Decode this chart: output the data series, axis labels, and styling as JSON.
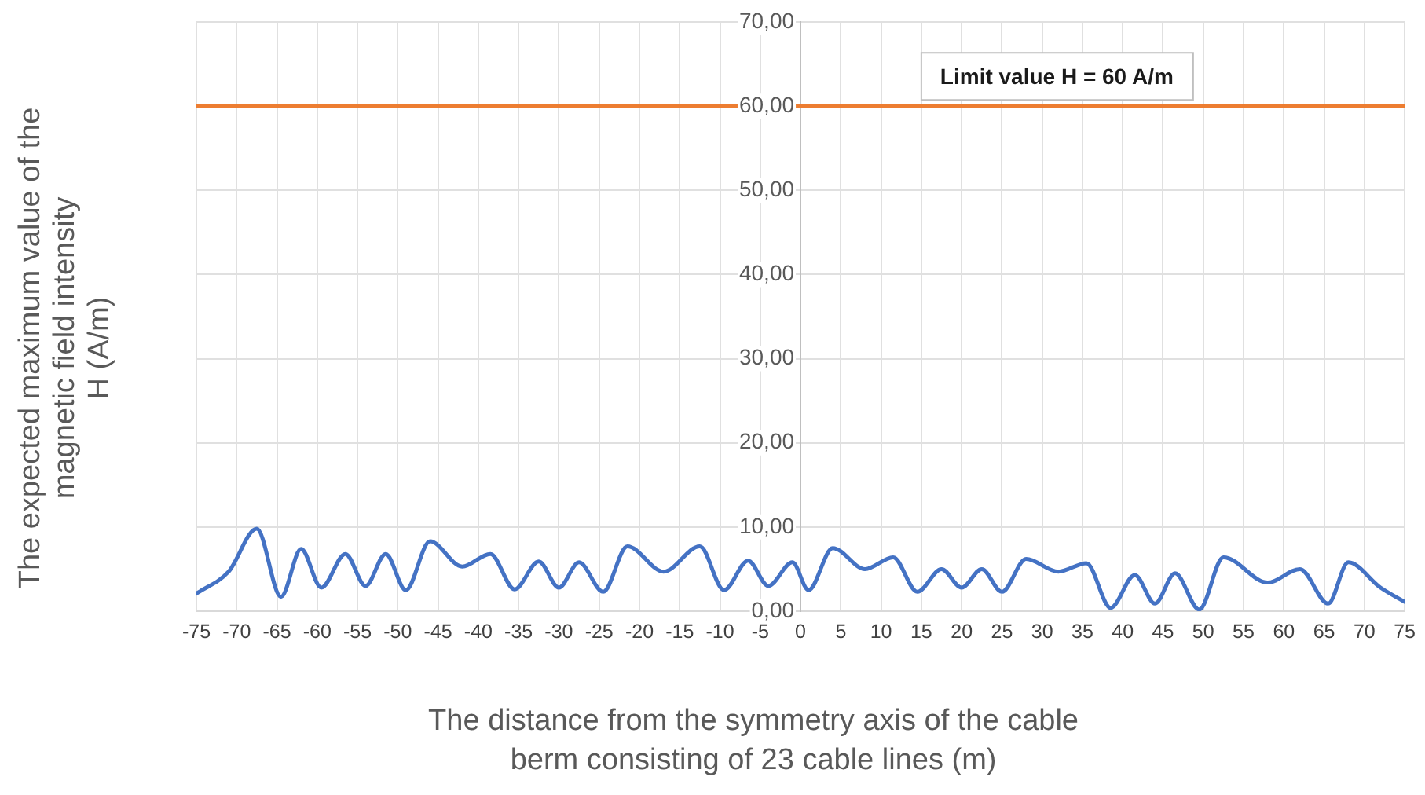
{
  "chart_data": {
    "type": "line",
    "xlabel": "The distance from the symmetry axis of the cable\nberm consisting of 23 cable lines (m)",
    "ylabel": "The expected maximum value of the\nmagnetic field intensity\nH (A/m)",
    "series": [
      {
        "color": "#4472c4",
        "x": [
          -75,
          -71,
          -67.5,
          -64.5,
          -62,
          -59.5,
          -56.5,
          -54,
          -51.5,
          -49,
          -46,
          -42,
          -38.5,
          -35.5,
          -32.5,
          -30,
          -27.5,
          -24.5,
          -21.5,
          -17,
          -12.5,
          -9.5,
          -6.5,
          -4,
          -1,
          1,
          4,
          8,
          11.5,
          14.5,
          17.5,
          20,
          22.5,
          25,
          28,
          32,
          35.5,
          38.5,
          41.5,
          44,
          46.5,
          49.5,
          52.5,
          58,
          62,
          65.5,
          68,
          72,
          75
        ],
        "values": [
          2.1,
          4.7,
          9.8,
          1.7,
          7.4,
          2.8,
          6.8,
          3.0,
          6.8,
          2.5,
          8.3,
          5.3,
          6.8,
          2.6,
          5.9,
          2.8,
          5.8,
          2.3,
          7.7,
          4.7,
          7.7,
          2.5,
          6.0,
          3.0,
          5.8,
          2.5,
          7.5,
          5.0,
          6.4,
          2.3,
          5.0,
          2.8,
          5.0,
          2.3,
          6.2,
          4.7,
          5.7,
          0.4,
          4.3,
          0.9,
          4.5,
          0.2,
          6.4,
          3.4,
          5.0,
          0.9,
          5.8,
          2.8,
          1.1
        ]
      }
    ],
    "xlim": [
      -75,
      75
    ],
    "xticks": [
      -75,
      -70,
      -65,
      -60,
      -55,
      -50,
      -45,
      -40,
      -35,
      -30,
      -25,
      -20,
      -15,
      -10,
      -5,
      0,
      5,
      10,
      15,
      20,
      25,
      30,
      35,
      40,
      45,
      50,
      55,
      60,
      65,
      70,
      75
    ],
    "ylim": [
      0,
      70
    ],
    "yticks": [
      {
        "value": 0,
        "label": "0,00"
      },
      {
        "value": 10,
        "label": "10,00"
      },
      {
        "value": 20,
        "label": "20,00"
      },
      {
        "value": 30,
        "label": "30,00"
      },
      {
        "value": 40,
        "label": "40,00"
      },
      {
        "value": 50,
        "label": "50,00"
      },
      {
        "value": 60,
        "label": "60,00"
      },
      {
        "value": 70,
        "label": "70,00"
      }
    ],
    "ref_lines": [
      {
        "axis": "y",
        "value": 60,
        "label": "Limit value H = 60 A/m",
        "color": "#ed7d31"
      }
    ],
    "grid": true,
    "legend": false,
    "marker": "none",
    "line_style": "solid"
  }
}
